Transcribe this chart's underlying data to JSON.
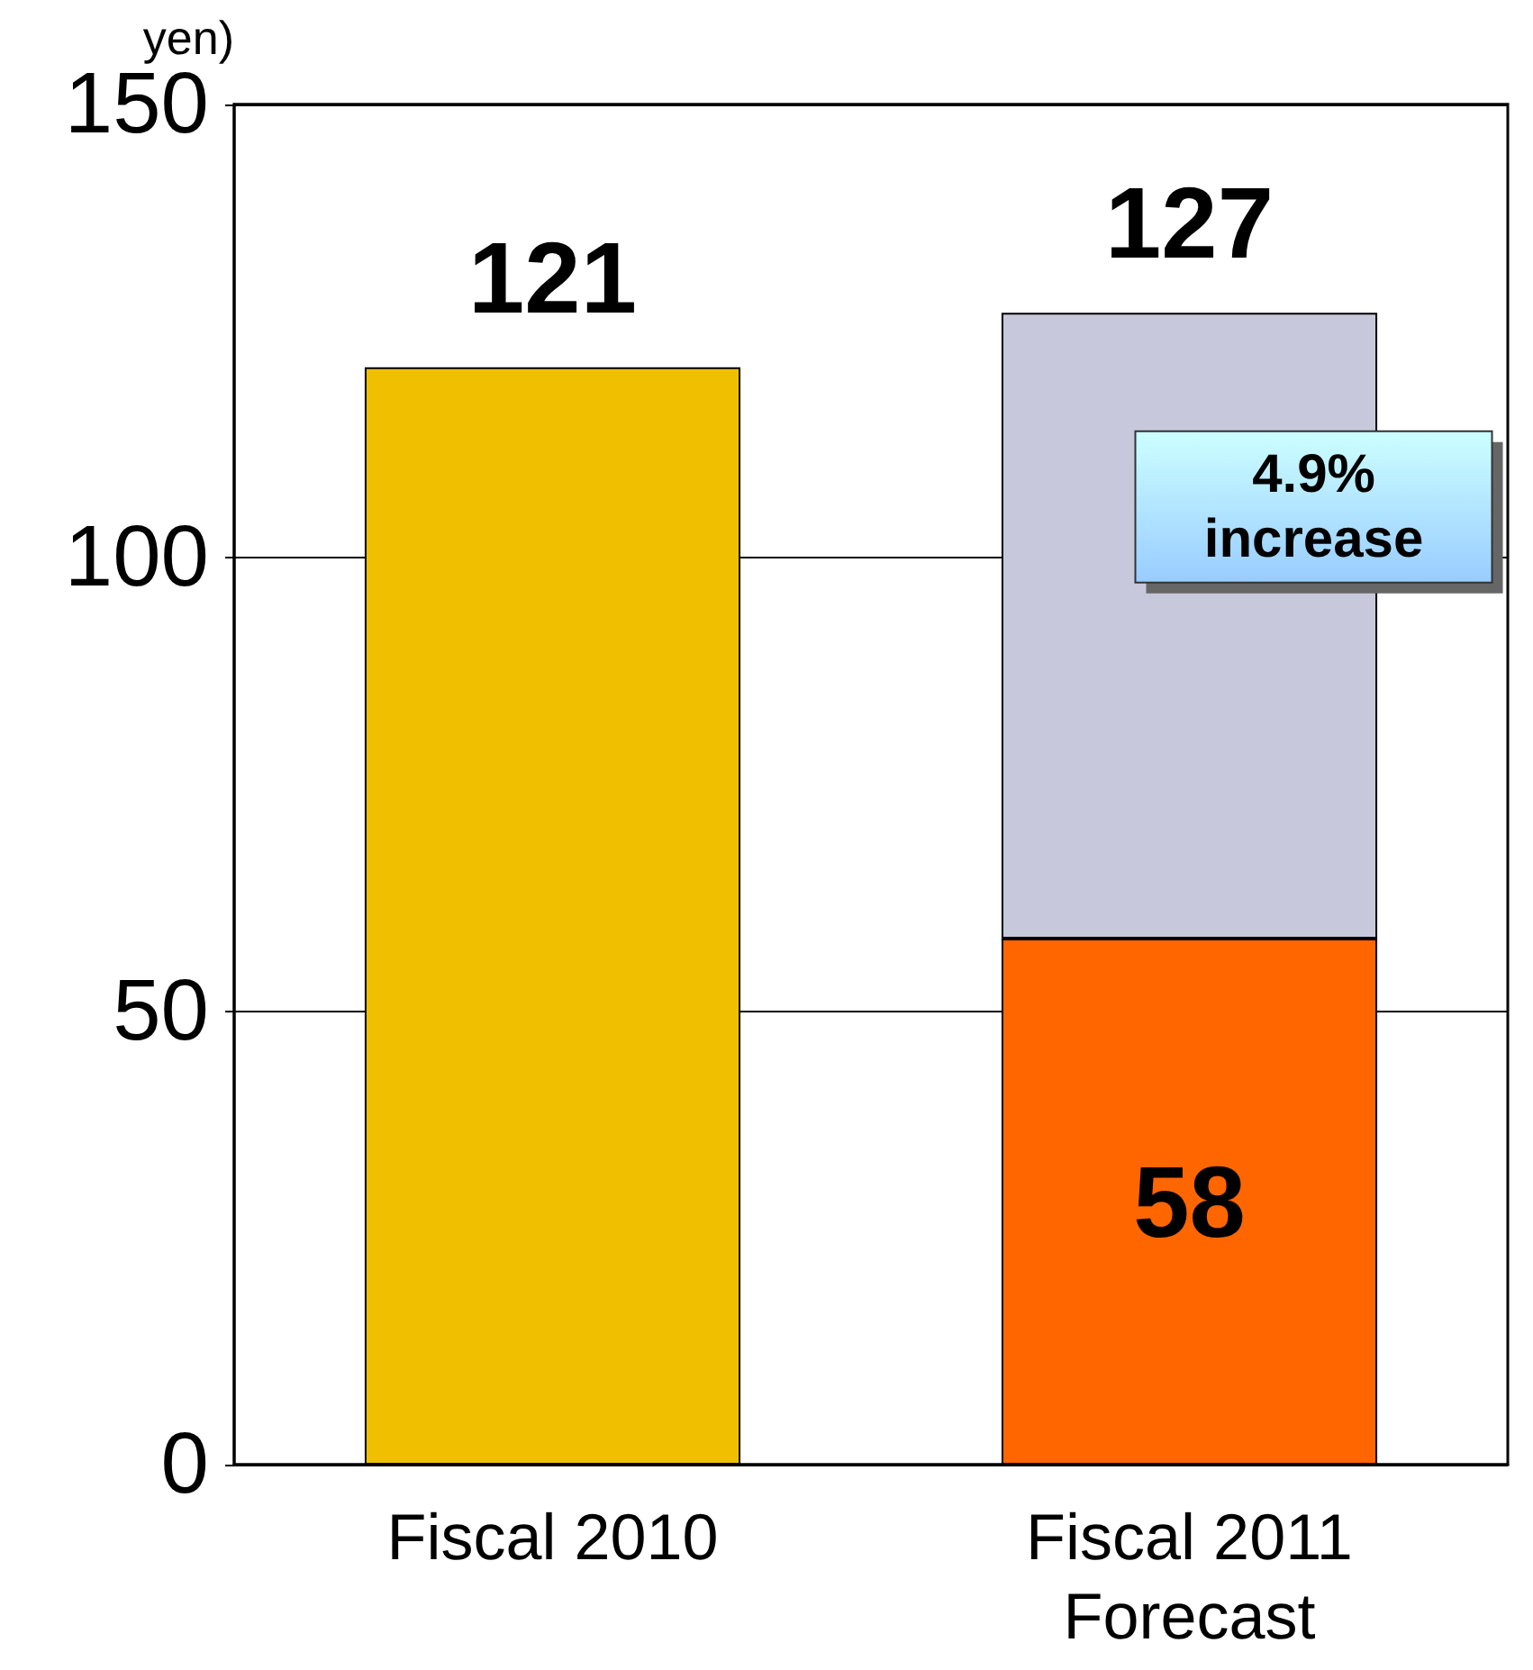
{
  "chart_data": {
    "type": "bar",
    "ylabel": "yen)",
    "categories": [
      "Fiscal 2010",
      "Fiscal 2011\nForecast"
    ],
    "stacked": true,
    "series": [
      {
        "color": "#f0c000",
        "colors": [
          "#f0c000",
          "#ff6600"
        ],
        "values": [
          121,
          58
        ],
        "value_labels": [
          null,
          "58"
        ]
      },
      {
        "color": "#c8c8dc",
        "values": [
          null,
          69
        ]
      }
    ],
    "totals": [
      "121",
      "127"
    ],
    "annotations": [
      "4.9%\nincrease"
    ],
    "ylim": [
      0,
      150
    ],
    "yticks": [
      0,
      50,
      100,
      150
    ],
    "grid": "y"
  }
}
